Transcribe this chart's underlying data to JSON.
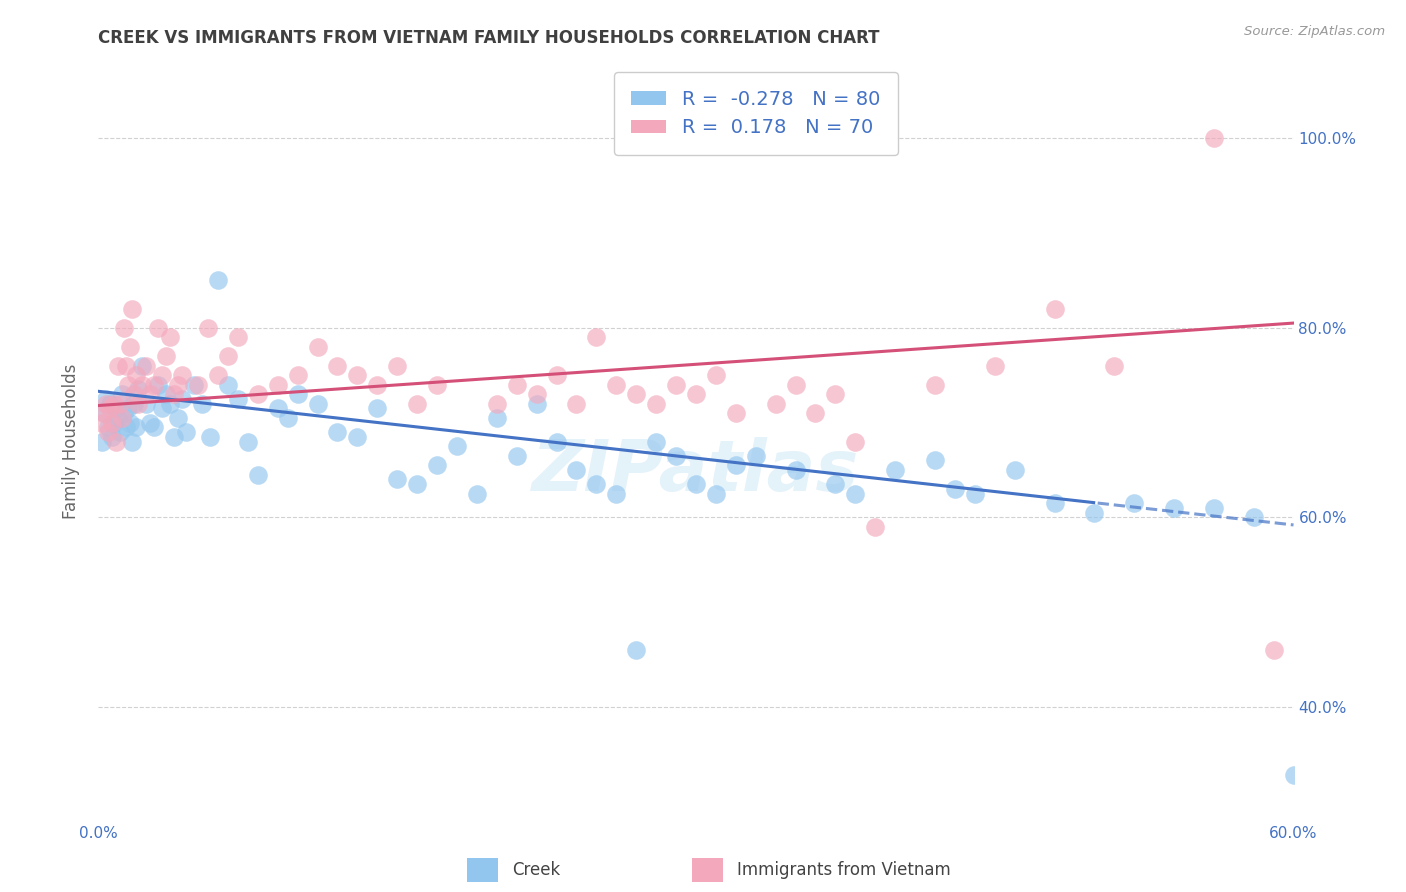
{
  "title": "CREEK VS IMMIGRANTS FROM VIETNAM FAMILY HOUSEHOLDS CORRELATION CHART",
  "source": "Source: ZipAtlas.com",
  "ylabel": "Family Households",
  "x_label_creek": "Creek",
  "x_label_vietnam": "Immigrants from Vietnam",
  "xlim": [
    0.0,
    0.6
  ],
  "ylim": [
    0.28,
    1.08
  ],
  "x_ticks": [
    0.0,
    0.1,
    0.2,
    0.3,
    0.4,
    0.5,
    0.6
  ],
  "x_tick_labels": [
    "0.0%",
    "",
    "",
    "",
    "",
    "",
    "60.0%"
  ],
  "y_ticks_right": [
    0.4,
    0.6,
    0.8,
    1.0
  ],
  "y_tick_labels_right": [
    "40.0%",
    "60.0%",
    "80.0%",
    "100.0%"
  ],
  "creek_color": "#93C6EE",
  "vietnam_color": "#F4A8BC",
  "creek_line_color": "#4472C4",
  "vietnam_line_color": "#D45078",
  "creek_R": -0.278,
  "creek_N": 80,
  "vietnam_R": 0.178,
  "vietnam_N": 70,
  "background_color": "#FFFFFF",
  "grid_color": "#CCCCCC",
  "title_color": "#404040",
  "axis_label_color": "#4472C4",
  "watermark": "ZIPatlas",
  "creek_line_intercept": 0.733,
  "creek_line_slope": -0.235,
  "creek_line_solid_end": 0.5,
  "vietnam_line_intercept": 0.718,
  "vietnam_line_slope": 0.145,
  "creek_points_x": [
    0.002,
    0.003,
    0.004,
    0.005,
    0.006,
    0.007,
    0.008,
    0.009,
    0.01,
    0.011,
    0.012,
    0.013,
    0.014,
    0.015,
    0.016,
    0.017,
    0.018,
    0.019,
    0.02,
    0.022,
    0.024,
    0.026,
    0.028,
    0.03,
    0.032,
    0.034,
    0.036,
    0.038,
    0.04,
    0.042,
    0.044,
    0.048,
    0.052,
    0.056,
    0.06,
    0.065,
    0.07,
    0.075,
    0.08,
    0.09,
    0.095,
    0.1,
    0.11,
    0.12,
    0.13,
    0.14,
    0.15,
    0.16,
    0.17,
    0.18,
    0.19,
    0.2,
    0.21,
    0.22,
    0.23,
    0.24,
    0.25,
    0.26,
    0.27,
    0.28,
    0.29,
    0.3,
    0.31,
    0.32,
    0.33,
    0.35,
    0.37,
    0.38,
    0.4,
    0.42,
    0.44,
    0.46,
    0.48,
    0.5,
    0.52,
    0.54,
    0.56,
    0.58,
    0.6,
    0.43
  ],
  "creek_points_y": [
    0.68,
    0.71,
    0.725,
    0.695,
    0.72,
    0.685,
    0.7,
    0.715,
    0.705,
    0.69,
    0.73,
    0.71,
    0.695,
    0.715,
    0.7,
    0.68,
    0.72,
    0.695,
    0.735,
    0.76,
    0.72,
    0.7,
    0.695,
    0.74,
    0.715,
    0.73,
    0.72,
    0.685,
    0.705,
    0.725,
    0.69,
    0.74,
    0.72,
    0.685,
    0.85,
    0.74,
    0.725,
    0.68,
    0.645,
    0.715,
    0.705,
    0.73,
    0.72,
    0.69,
    0.685,
    0.715,
    0.64,
    0.635,
    0.655,
    0.675,
    0.625,
    0.705,
    0.665,
    0.72,
    0.68,
    0.65,
    0.635,
    0.625,
    0.46,
    0.68,
    0.665,
    0.635,
    0.625,
    0.655,
    0.665,
    0.65,
    0.635,
    0.625,
    0.65,
    0.66,
    0.625,
    0.65,
    0.615,
    0.605,
    0.615,
    0.61,
    0.61,
    0.6,
    0.328,
    0.63
  ],
  "vietnam_points_x": [
    0.002,
    0.003,
    0.004,
    0.005,
    0.006,
    0.007,
    0.008,
    0.009,
    0.01,
    0.011,
    0.012,
    0.013,
    0.014,
    0.015,
    0.016,
    0.017,
    0.018,
    0.019,
    0.02,
    0.022,
    0.024,
    0.026,
    0.028,
    0.03,
    0.032,
    0.034,
    0.036,
    0.038,
    0.04,
    0.042,
    0.05,
    0.055,
    0.06,
    0.065,
    0.07,
    0.08,
    0.09,
    0.1,
    0.11,
    0.12,
    0.13,
    0.14,
    0.15,
    0.16,
    0.17,
    0.2,
    0.21,
    0.22,
    0.23,
    0.24,
    0.25,
    0.26,
    0.27,
    0.28,
    0.29,
    0.3,
    0.31,
    0.32,
    0.34,
    0.35,
    0.36,
    0.37,
    0.38,
    0.39,
    0.42,
    0.45,
    0.48,
    0.51,
    0.56,
    0.59
  ],
  "vietnam_points_y": [
    0.7,
    0.71,
    0.72,
    0.69,
    0.715,
    0.7,
    0.72,
    0.68,
    0.76,
    0.72,
    0.705,
    0.8,
    0.76,
    0.74,
    0.78,
    0.82,
    0.73,
    0.75,
    0.72,
    0.74,
    0.76,
    0.73,
    0.74,
    0.8,
    0.75,
    0.77,
    0.79,
    0.73,
    0.74,
    0.75,
    0.74,
    0.8,
    0.75,
    0.77,
    0.79,
    0.73,
    0.74,
    0.75,
    0.78,
    0.76,
    0.75,
    0.74,
    0.76,
    0.72,
    0.74,
    0.72,
    0.74,
    0.73,
    0.75,
    0.72,
    0.79,
    0.74,
    0.73,
    0.72,
    0.74,
    0.73,
    0.75,
    0.71,
    0.72,
    0.74,
    0.71,
    0.73,
    0.68,
    0.59,
    0.74,
    0.76,
    0.82,
    0.76,
    1.0,
    0.46
  ]
}
